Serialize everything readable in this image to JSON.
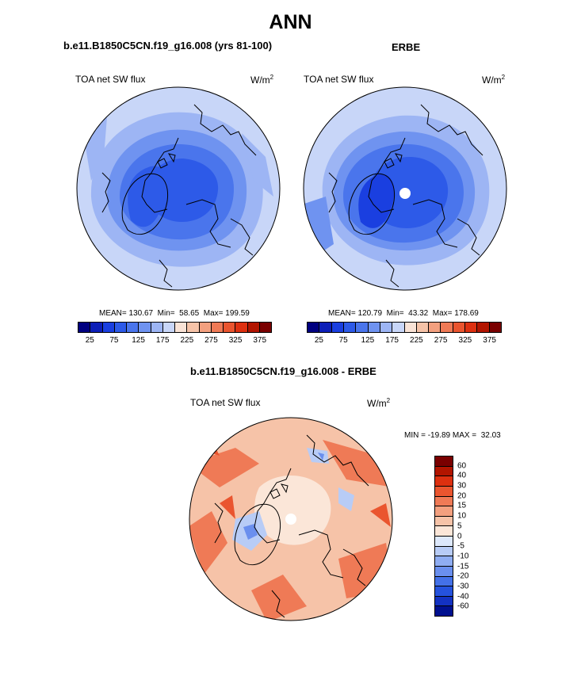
{
  "title": "ANN",
  "panels": {
    "model": {
      "name": "b.e11.B1850C5CN.f19_g16.008 (yrs 81-100)",
      "variable": "TOA net SW flux",
      "units_base": "W/m",
      "units_exp": "2",
      "stats": "MEAN= 130.67  Min=  58.65  Max= 199.59"
    },
    "obs": {
      "name": "ERBE",
      "variable": "TOA net SW flux",
      "units_base": "W/m",
      "units_exp": "2",
      "stats": "MEAN= 120.79  Min=  43.32  Max= 178.69"
    },
    "diff": {
      "name": "b.e11.B1850C5CN.f19_g16.008 - ERBE",
      "variable": "TOA net SW flux",
      "units_base": "W/m",
      "units_exp": "2",
      "stats": "MIN = -19.89 MAX =  32.03"
    }
  },
  "colorbar_abs": {
    "colors": [
      "#000080",
      "#0d1fb8",
      "#1a3fe0",
      "#2d5ae8",
      "#4a75ec",
      "#6f93f0",
      "#9db5f4",
      "#c8d6f8",
      "#f9e3d6",
      "#f6c3a8",
      "#f3a07f",
      "#ef7a56",
      "#ea552f",
      "#dd3010",
      "#b21500",
      "#7a0000"
    ],
    "labels": [
      "25",
      "75",
      "125",
      "175",
      "225",
      "275",
      "325",
      "375"
    ]
  },
  "colorbar_diff": {
    "colors": [
      "#7a0000",
      "#b21500",
      "#dd3010",
      "#ea552f",
      "#ef7a56",
      "#f3a07f",
      "#f6c3a8",
      "#fbe6d8",
      "#dde8fb",
      "#b8ccf6",
      "#8fadf2",
      "#6a8fee",
      "#4471e8",
      "#2552dd",
      "#1332c2",
      "#00108f"
    ],
    "labels": [
      "60",
      "40",
      "30",
      "20",
      "15",
      "10",
      "5",
      "0",
      "-5",
      "-10",
      "-15",
      "-20",
      "-30",
      "-40",
      "-60"
    ]
  },
  "map_colors": {
    "ring1": "#c8d6f8",
    "ring2": "#9db5f4",
    "ring3": "#6f93f0",
    "ring4": "#4a75ec",
    "core": "#2d5ae8",
    "diff_base": "#f6c3a8",
    "diff_warm": "#ef7a56",
    "diff_hot": "#ea552f",
    "diff_pale": "#fbe6d8",
    "diff_cool": "#b8ccf6",
    "diff_cold": "#6a8fee"
  }
}
